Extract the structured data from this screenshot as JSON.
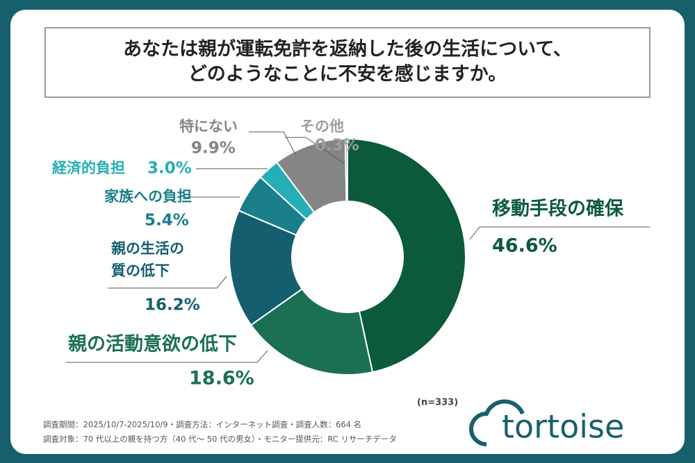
{
  "chart_data": {
    "type": "pie",
    "donut": true,
    "title_lines": [
      "あなたは親が運転免許を返納した後の生活について、",
      "どのようなことに不安を感じますか。"
    ],
    "categories": [
      "移動手段の確保",
      "親の活動意欲の低下",
      "親の生活の質の低下",
      "家族への負担",
      "経済的負担",
      "特にない",
      "その他"
    ],
    "values": [
      46.6,
      18.6,
      16.2,
      5.4,
      3.0,
      9.9,
      0.3
    ],
    "value_labels": [
      "46.6%",
      "18.6%",
      "16.2%",
      "5.4%",
      "3.0%",
      "9.9%",
      "0.3%"
    ],
    "colors": [
      "#0b5a3a",
      "#1b7053",
      "#145e6f",
      "#1b7e8b",
      "#25aeb5",
      "#858585",
      "#9d9d9d"
    ],
    "sample_note": "(n=333)",
    "notes": [
      "調査期間：2025/10/7-2025/10/9・調査方法：インターネット調査・調査人数：664 名",
      "調査対象：70 代以上の親を持つ方（40 代～ 50 代の男女）・モニター提供元：RC リサーチデータ"
    ],
    "brand": "tortoise"
  }
}
